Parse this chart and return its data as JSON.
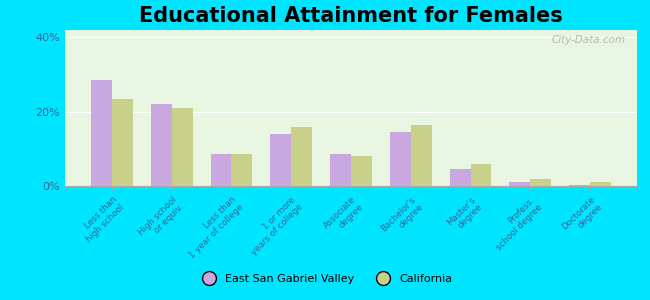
{
  "title": "Educational Attainment for Females",
  "categories": [
    "Less than\nhigh school",
    "High school\nor equiv.",
    "Less than\n1 year of college",
    "1 or more\nyears of college",
    "Associate\ndegree",
    "Bachelor's\ndegree",
    "Master's\ndegree",
    "Profess.\nschool degree",
    "Doctorate\ndegree"
  ],
  "esgv_values": [
    28.5,
    22.0,
    8.5,
    14.0,
    8.5,
    14.5,
    4.5,
    1.0,
    0.3
  ],
  "ca_values": [
    23.5,
    21.0,
    8.5,
    16.0,
    8.0,
    16.5,
    6.0,
    2.0,
    1.0
  ],
  "esgv_color": "#c9a8e0",
  "ca_color": "#c8d08a",
  "background_color": "#e8f5e0",
  "outer_background": "#00e5ff",
  "ylim": [
    0,
    42
  ],
  "yticks": [
    0,
    20,
    40
  ],
  "ytick_labels": [
    "0%",
    "20%",
    "40%"
  ],
  "legend_esgv": "East San Gabriel Valley",
  "legend_ca": "California",
  "title_fontsize": 15,
  "watermark": "City-Data.com"
}
